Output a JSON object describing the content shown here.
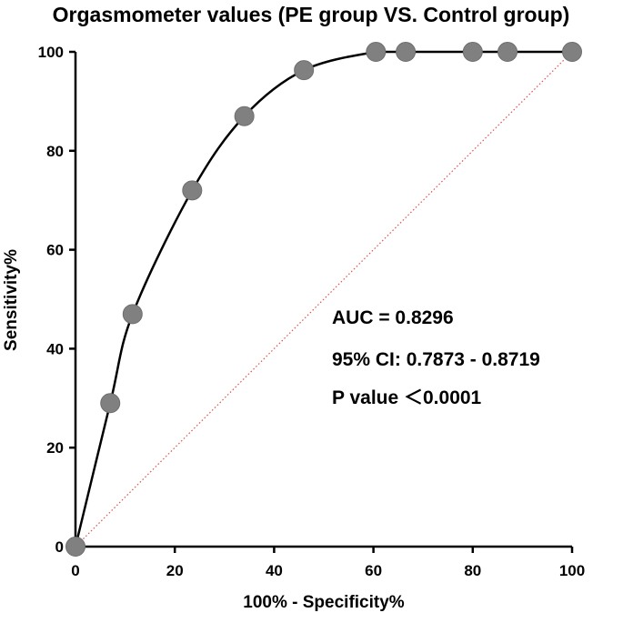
{
  "chart_data": {
    "type": "line",
    "title": "Orgasmometer values (PE group VS. Control group)",
    "xlabel": "100% - Specificity%",
    "ylabel": "Sensitivity%",
    "xlim": [
      0,
      100
    ],
    "ylim": [
      0,
      100
    ],
    "xticks": [
      0,
      20,
      40,
      60,
      80,
      100
    ],
    "yticks": [
      0,
      20,
      40,
      60,
      80,
      100
    ],
    "grid": false,
    "series": [
      {
        "style": "solid line with markers",
        "color": "#000000",
        "marker_color": "#808080",
        "x": [
          0,
          7,
          11.5,
          23.5,
          34,
          46,
          60.5,
          66.5,
          80,
          87,
          100
        ],
        "y": [
          0,
          29,
          47,
          72,
          87,
          96.3,
          100,
          100,
          100,
          100,
          100
        ]
      },
      {
        "style": "dotted reference line",
        "color": "#d9534f",
        "x": [
          0,
          100
        ],
        "y": [
          0,
          100
        ]
      }
    ],
    "annotations": [
      "AUC = 0.8296",
      "95% CI: 0.7873 - 0.8719",
      "P value ＜0.0001"
    ]
  }
}
